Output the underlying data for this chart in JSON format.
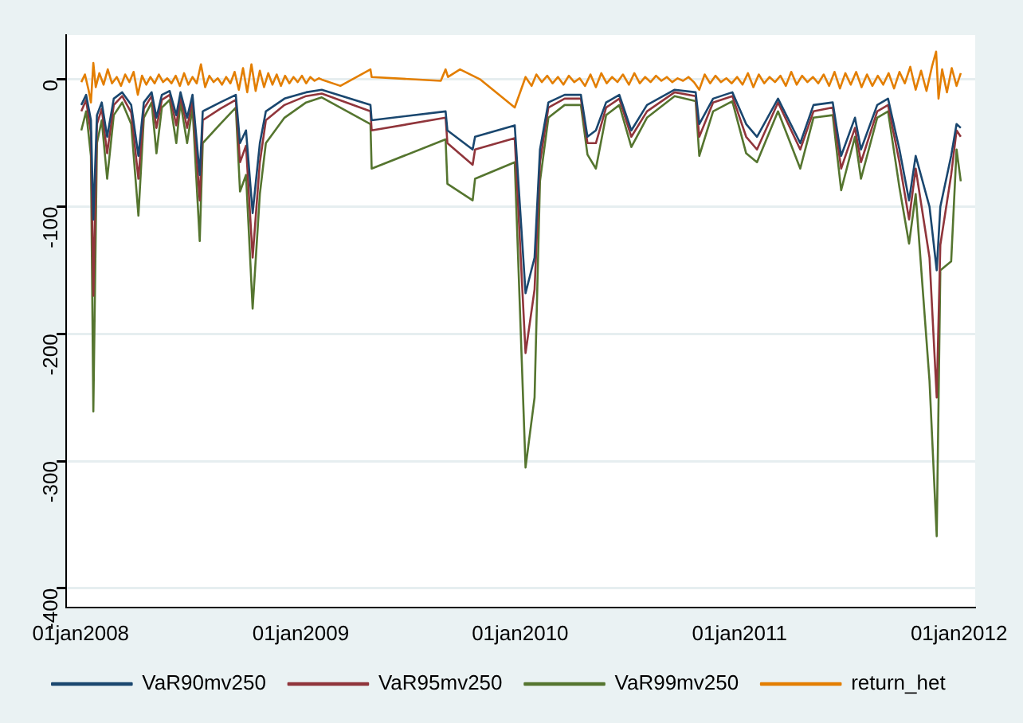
{
  "chart_data": {
    "type": "line",
    "xlim": [
      "2007-12-08",
      "2012-01-28"
    ],
    "xticks": [
      {
        "value": "2008-01-01",
        "label": "01jan2008"
      },
      {
        "value": "2009-01-01",
        "label": "01jan2009"
      },
      {
        "value": "2010-01-01",
        "label": "01jan2010"
      },
      {
        "value": "2011-01-01",
        "label": "01jan2011"
      },
      {
        "value": "2012-01-01",
        "label": "01jan2012"
      }
    ],
    "ylim": [
      -415,
      35
    ],
    "yticks": [
      0,
      -100,
      -200,
      -300,
      -400
    ],
    "grid": "y",
    "legend": "bottom",
    "marker": "none",
    "line_style": "solid",
    "x": [
      "2008-01-02",
      "2008-01-10",
      "2008-01-18",
      "2008-01-22",
      "2008-01-28",
      "2008-02-05",
      "2008-02-14",
      "2008-02-25",
      "2008-03-10",
      "2008-03-25",
      "2008-04-06",
      "2008-04-15",
      "2008-04-28",
      "2008-05-06",
      "2008-05-15",
      "2008-05-28",
      "2008-06-08",
      "2008-06-15",
      "2008-06-26",
      "2008-07-05",
      "2008-07-17",
      "2008-07-22",
      "2008-08-20",
      "2008-09-15",
      "2008-09-22",
      "2008-10-02",
      "2008-10-13",
      "2008-10-25",
      "2008-11-04",
      "2008-12-05",
      "2009-01-10",
      "2009-02-05",
      "2009-04-27",
      "2009-04-29",
      "2009-08-30",
      "2009-09-02",
      "2009-10-14",
      "2009-10-18",
      "2009-12-23",
      "2010-01-10",
      "2010-01-25",
      "2010-02-03",
      "2010-02-17",
      "2010-03-16",
      "2010-04-12",
      "2010-04-23",
      "2010-05-07",
      "2010-05-24",
      "2010-06-15",
      "2010-07-05",
      "2010-07-31",
      "2010-09-15",
      "2010-10-20",
      "2010-10-26",
      "2010-11-18",
      "2010-12-20",
      "2011-01-12",
      "2011-01-30",
      "2011-03-06",
      "2011-04-12",
      "2011-05-04",
      "2011-06-05",
      "2011-06-19",
      "2011-07-12",
      "2011-07-22",
      "2011-08-18",
      "2011-09-05",
      "2011-09-24",
      "2011-10-10",
      "2011-10-21",
      "2011-11-13",
      "2011-11-25",
      "2011-12-01",
      "2011-12-19",
      "2011-12-28",
      "2012-01-04"
    ],
    "series": [
      {
        "name": "VaR90mv250",
        "color": "#1a476f",
        "values": [
          -20,
          -12,
          -32,
          -110,
          -28,
          -18,
          -45,
          -15,
          -10,
          -20,
          -60,
          -18,
          -10,
          -30,
          -12,
          -9,
          -28,
          -10,
          -30,
          -12,
          -75,
          -25,
          -18,
          -12,
          -50,
          -40,
          -105,
          -50,
          -25,
          -15,
          -10,
          -8,
          -20,
          -32,
          -25,
          -40,
          -55,
          -45,
          -36,
          -168,
          -140,
          -55,
          -18,
          -12,
          -12,
          -45,
          -40,
          -18,
          -12,
          -40,
          -20,
          -8,
          -10,
          -35,
          -15,
          -10,
          -35,
          -45,
          -15,
          -50,
          -20,
          -18,
          -60,
          -30,
          -55,
          -20,
          -15,
          -55,
          -95,
          -60,
          -100,
          -150,
          -100,
          -60,
          -35,
          -38
        ]
      },
      {
        "name": "VaR95mv250",
        "color": "#90353b",
        "values": [
          -25,
          -16,
          -42,
          -170,
          -35,
          -23,
          -58,
          -20,
          -13,
          -26,
          -78,
          -23,
          -13,
          -38,
          -16,
          -12,
          -36,
          -13,
          -38,
          -16,
          -95,
          -32,
          -23,
          -16,
          -65,
          -52,
          -140,
          -65,
          -32,
          -20,
          -13,
          -11,
          -25,
          -40,
          -30,
          -50,
          -67,
          -55,
          -46,
          -215,
          -165,
          -65,
          -22,
          -15,
          -15,
          -50,
          -50,
          -22,
          -15,
          -45,
          -25,
          -10,
          -13,
          -45,
          -18,
          -13,
          -45,
          -55,
          -18,
          -55,
          -25,
          -22,
          -70,
          -38,
          -65,
          -25,
          -20,
          -65,
          -110,
          -70,
          -140,
          -250,
          -130,
          -75,
          -40,
          -45
        ]
      },
      {
        "name": "VaR99mv250",
        "color": "#55752f",
        "values": [
          -40,
          -25,
          -60,
          -261,
          -50,
          -32,
          -78,
          -28,
          -18,
          -35,
          -107,
          -30,
          -18,
          -58,
          -22,
          -16,
          -50,
          -18,
          -50,
          -22,
          -127,
          -50,
          -35,
          -22,
          -88,
          -75,
          -180,
          -90,
          -50,
          -30,
          -18,
          -14,
          -35,
          -70,
          -47,
          -82,
          -95,
          -78,
          -65,
          -305,
          -250,
          -80,
          -30,
          -20,
          -20,
          -59,
          -70,
          -28,
          -20,
          -53,
          -30,
          -13,
          -17,
          -60,
          -25,
          -17,
          -58,
          -65,
          -25,
          -70,
          -30,
          -28,
          -87,
          -45,
          -78,
          -30,
          -25,
          -85,
          -129,
          -90,
          -237,
          -359,
          -150,
          -143,
          -55,
          -80
        ]
      },
      {
        "name": "return_het",
        "color": "#e37e00",
        "x": [
          "2008-01-02",
          "2008-01-08",
          "2008-01-14",
          "2008-01-18",
          "2008-01-22",
          "2008-01-26",
          "2008-02-01",
          "2008-02-08",
          "2008-02-15",
          "2008-02-22",
          "2008-03-01",
          "2008-03-08",
          "2008-03-15",
          "2008-03-22",
          "2008-03-29",
          "2008-04-05",
          "2008-04-12",
          "2008-04-19",
          "2008-04-26",
          "2008-05-03",
          "2008-05-10",
          "2008-05-17",
          "2008-05-24",
          "2008-05-31",
          "2008-06-07",
          "2008-06-14",
          "2008-06-21",
          "2008-06-28",
          "2008-07-05",
          "2008-07-12",
          "2008-07-19",
          "2008-07-26",
          "2008-08-02",
          "2008-08-09",
          "2008-08-16",
          "2008-08-23",
          "2008-08-30",
          "2008-09-06",
          "2008-09-13",
          "2008-09-20",
          "2008-09-27",
          "2008-10-04",
          "2008-10-11",
          "2008-10-18",
          "2008-10-25",
          "2008-11-01",
          "2008-11-08",
          "2008-11-15",
          "2008-11-22",
          "2008-11-29",
          "2008-12-06",
          "2008-12-13",
          "2008-12-20",
          "2008-12-27",
          "2009-01-03",
          "2009-01-10",
          "2009-01-17",
          "2009-01-24",
          "2009-01-31",
          "2009-02-05",
          "2009-03-08",
          "2009-04-27",
          "2009-04-29",
          "2009-08-22",
          "2009-08-30",
          "2009-09-03",
          "2009-09-23",
          "2009-10-27",
          "2009-12-23",
          "2010-01-10",
          "2010-01-20",
          "2010-01-28",
          "2010-02-06",
          "2010-02-15",
          "2010-02-24",
          "2010-03-05",
          "2010-03-14",
          "2010-03-23",
          "2010-04-01",
          "2010-04-10",
          "2010-04-19",
          "2010-04-28",
          "2010-05-07",
          "2010-05-16",
          "2010-05-25",
          "2010-06-03",
          "2010-06-12",
          "2010-06-21",
          "2010-07-01",
          "2010-07-10",
          "2010-07-19",
          "2010-07-28",
          "2010-08-06",
          "2010-08-15",
          "2010-08-24",
          "2010-09-02",
          "2010-09-11",
          "2010-09-20",
          "2010-09-29",
          "2010-10-08",
          "2010-10-17",
          "2010-10-26",
          "2010-11-04",
          "2010-11-13",
          "2010-11-22",
          "2010-12-01",
          "2010-12-10",
          "2010-12-19",
          "2010-12-28",
          "2011-01-06",
          "2011-01-15",
          "2011-01-24",
          "2011-02-02",
          "2011-02-11",
          "2011-02-20",
          "2011-03-01",
          "2011-03-10",
          "2011-03-19",
          "2011-03-28",
          "2011-04-06",
          "2011-04-15",
          "2011-04-24",
          "2011-05-03",
          "2011-05-12",
          "2011-05-21",
          "2011-05-30",
          "2011-06-08",
          "2011-06-17",
          "2011-06-26",
          "2011-07-05",
          "2011-07-14",
          "2011-07-23",
          "2011-08-01",
          "2011-08-10",
          "2011-08-19",
          "2011-08-28",
          "2011-09-06",
          "2011-09-15",
          "2011-09-24",
          "2011-10-03",
          "2011-10-12",
          "2011-10-21",
          "2011-10-30",
          "2011-11-08",
          "2011-11-17",
          "2011-11-24",
          "2011-11-28",
          "2011-12-04",
          "2011-12-12",
          "2011-12-20",
          "2011-12-28",
          "2012-01-04"
        ],
        "values": [
          -2,
          4,
          -8,
          -18,
          13,
          -6,
          5,
          -4,
          8,
          -3,
          2,
          -5,
          4,
          -2,
          6,
          -12,
          3,
          -4,
          2,
          -3,
          4,
          -2,
          1,
          -3,
          3,
          -5,
          5,
          -4,
          2,
          -3,
          12,
          -6,
          3,
          -2,
          1,
          -4,
          2,
          -3,
          6,
          -8,
          9,
          -10,
          12,
          -9,
          7,
          -6,
          5,
          -4,
          4,
          -5,
          3,
          -3,
          2,
          -2,
          3,
          -3,
          2,
          -1,
          1,
          0,
          -5,
          8,
          2,
          -1,
          8,
          2,
          8,
          0,
          -22,
          2,
          -5,
          4,
          -2,
          3,
          -3,
          2,
          -4,
          3,
          -2,
          1,
          -5,
          4,
          -6,
          5,
          -3,
          2,
          -2,
          4,
          -4,
          5,
          -3,
          2,
          -2,
          3,
          -1,
          2,
          -2,
          1,
          -1,
          2,
          -2,
          -8,
          4,
          -3,
          3,
          -2,
          1,
          -3,
          2,
          -4,
          5,
          -6,
          4,
          -3,
          2,
          -2,
          3,
          -5,
          6,
          -4,
          3,
          -2,
          2,
          -3,
          4,
          -5,
          6,
          -7,
          5,
          -4,
          6,
          -6,
          4,
          -5,
          3,
          -4,
          5,
          -7,
          6,
          -3,
          10,
          -8,
          7,
          -9,
          10,
          22,
          -15,
          8,
          -10,
          9,
          -5,
          5
        ]
      }
    ]
  }
}
